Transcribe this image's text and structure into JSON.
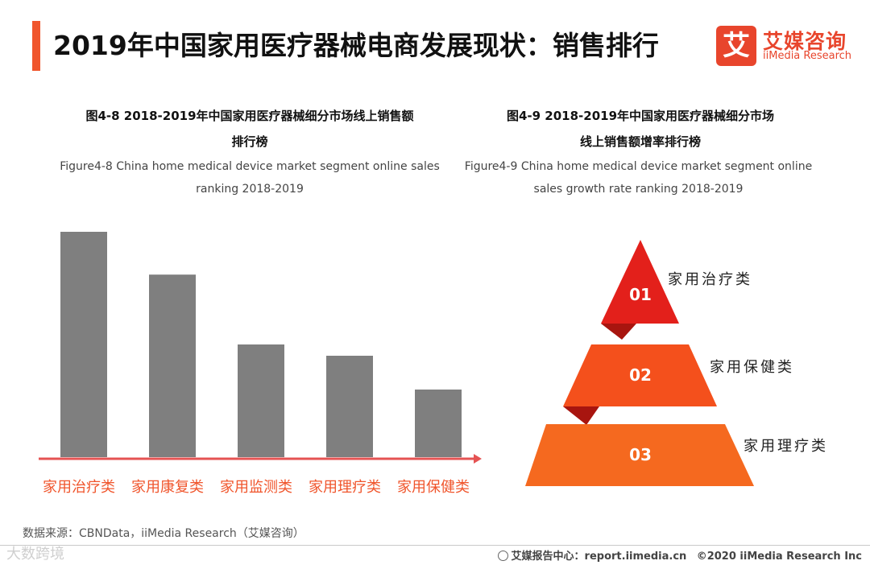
{
  "header": {
    "title": "2019年中国家用医疗器械电商发展现状：销售排行",
    "logo_mark": "艾",
    "logo_cn": "艾媒咨询",
    "logo_en": "iiMedia Research"
  },
  "figure1": {
    "title_line1": "图4-8 2018-2019年中国家用医疗器械细分市场线上销售额",
    "title_line2": "排行榜",
    "subtitle_line1": "Figure4-8  China home medical device market segment online sales",
    "subtitle_line2": "ranking 2018-2019"
  },
  "figure2": {
    "title_line1": "图4-9 2018-2019年中国家用医疗器械细分市场",
    "title_line2": "线上销售额增率排行榜",
    "subtitle_line1": "Figure4-9  China home medical device market segment online",
    "subtitle_line2": "sales growth rate ranking 2018-2019"
  },
  "chart_data": [
    {
      "type": "bar",
      "title": "2018-2019年中国家用医疗器械细分市场线上销售额排行榜",
      "categories": [
        "家用治疗类",
        "家用康复类",
        "家用监测类",
        "家用理疗类",
        "家用保健类"
      ],
      "values": [
        100,
        81,
        50,
        45,
        30
      ],
      "value_note": "relative (no axis shown)",
      "ylim": [
        0,
        100
      ],
      "bar_color": "#7f7f7f",
      "axis_color": "#e55353",
      "label_color": "#f0552c"
    },
    {
      "type": "pyramid-ranking",
      "title": "2018-2019年中国家用医疗器械细分市场线上销售额增率排行榜",
      "tiers": [
        {
          "rank": "01",
          "label": "家用治疗类",
          "color": "#e3201b"
        },
        {
          "rank": "02",
          "label": "家用保健类",
          "color": "#f4501c"
        },
        {
          "rank": "03",
          "label": "家用理疗类",
          "color": "#f5691f"
        }
      ]
    }
  ],
  "footer": {
    "source": "数据来源：CBNData，iiMedia Research（艾媒咨询）",
    "watermark": "大数跨境",
    "report_center": "艾媒报告中心：",
    "url": "report.iimedia.cn",
    "copyright": "©2020  iiMedia Research  Inc"
  }
}
